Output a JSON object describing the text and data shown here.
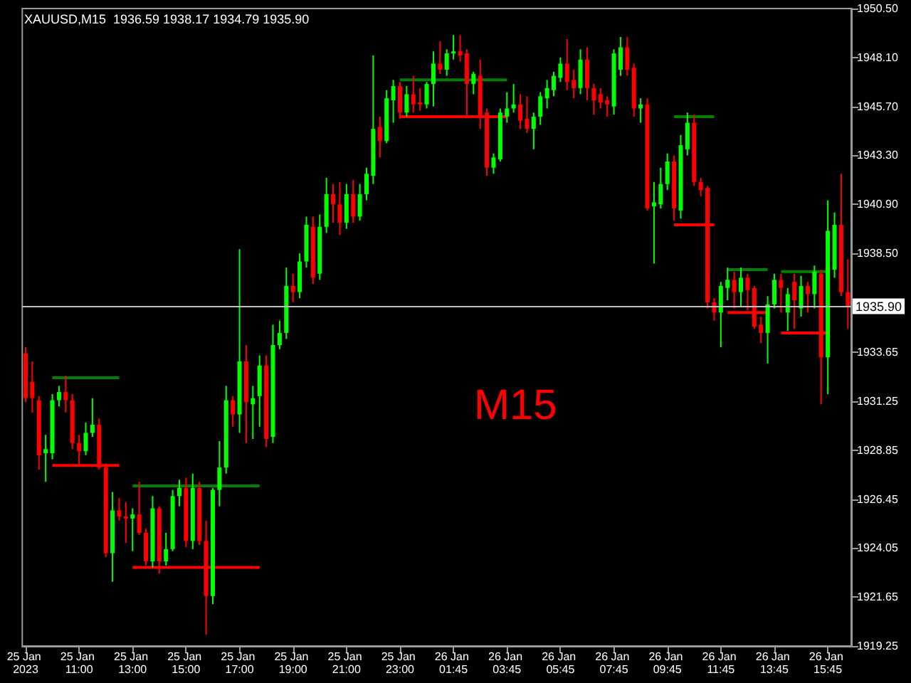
{
  "chart_data": {
    "type": "candlestick",
    "title": "XAUUSD,M15  1936.59 1938.17 1934.79 1935.90",
    "categories": [
      "25 Jan 2023",
      null,
      null,
      null,
      null,
      null,
      null,
      null,
      "25 Jan 11:00",
      null,
      null,
      null,
      null,
      null,
      null,
      null,
      "25 Jan 13:00",
      null,
      null,
      null,
      null,
      null,
      null,
      null,
      "25 Jan 15:00",
      null,
      null,
      null,
      null,
      null,
      null,
      null,
      "25 Jan 17:00",
      null,
      null,
      null,
      null,
      null,
      null,
      null,
      "25 Jan 19:00",
      null,
      null,
      null,
      null,
      null,
      null,
      null,
      "25 Jan 21:00",
      null,
      null,
      null,
      null,
      null,
      null,
      null,
      "25 Jan 23:00",
      null,
      null,
      null,
      null,
      null,
      null,
      null,
      "26 Jan 01:45",
      null,
      null,
      null,
      null,
      null,
      null,
      null,
      "26 Jan 03:45",
      null,
      null,
      null,
      null,
      null,
      null,
      null,
      "26 Jan 05:45",
      null,
      null,
      null,
      null,
      null,
      null,
      null,
      "26 Jan 07:45",
      null,
      null,
      null,
      null,
      null,
      null,
      null,
      "26 Jan 09:45",
      null,
      null,
      null,
      null,
      null,
      null,
      null,
      "26 Jan 11:45",
      null,
      null,
      null,
      null,
      null,
      null,
      null,
      "26 Jan 13:45",
      null,
      null,
      null,
      null,
      null,
      null,
      null,
      "26 Jan 15:45",
      null,
      null,
      null
    ],
    "ohlc": [
      [
        1933.6,
        1933.9,
        1931.2,
        1931.4
      ],
      [
        1932.2,
        1933.2,
        1930.7,
        1931.4
      ],
      [
        1931.3,
        1931.5,
        1927.9,
        1928.6
      ],
      [
        1928.7,
        1929.6,
        1927.3,
        1928.9
      ],
      [
        1928.7,
        1931.6,
        1928.4,
        1931.3
      ],
      [
        1931.3,
        1932.0,
        1931.0,
        1931.7
      ],
      [
        1931.7,
        1932.5,
        1930.7,
        1931.3
      ],
      [
        1931.3,
        1931.6,
        1928.9,
        1929.2
      ],
      [
        1929.2,
        1929.6,
        1928.1,
        1928.8
      ],
      [
        1928.8,
        1930.2,
        1928.6,
        1929.7
      ],
      [
        1929.7,
        1931.4,
        1929.5,
        1930.1
      ],
      [
        1930.1,
        1930.4,
        1927.9,
        1928.0
      ],
      [
        1928.0,
        1928.2,
        1923.6,
        1923.8
      ],
      [
        1923.8,
        1926.8,
        1922.4,
        1925.9
      ],
      [
        1925.9,
        1926.5,
        1925.4,
        1925.6
      ],
      [
        1925.6,
        1926.3,
        1924.3,
        1925.5
      ],
      [
        1925.5,
        1926.0,
        1923.9,
        1925.7
      ],
      [
        1925.7,
        1927.3,
        1924.7,
        1924.8
      ],
      [
        1924.8,
        1925.0,
        1923.2,
        1923.4
      ],
      [
        1923.4,
        1926.6,
        1923.1,
        1926.0
      ],
      [
        1926.0,
        1926.1,
        1922.8,
        1923.4
      ],
      [
        1923.4,
        1924.8,
        1923.2,
        1924.0
      ],
      [
        1924.0,
        1926.9,
        1923.9,
        1926.6
      ],
      [
        1926.6,
        1927.4,
        1926.1,
        1927.0
      ],
      [
        1927.0,
        1927.5,
        1924.1,
        1924.4
      ],
      [
        1924.4,
        1927.7,
        1924.0,
        1927.0
      ],
      [
        1927.0,
        1927.3,
        1924.2,
        1924.4
      ],
      [
        1924.4,
        1925.4,
        1919.8,
        1921.7
      ],
      [
        1921.7,
        1927.0,
        1921.3,
        1926.9
      ],
      [
        1926.9,
        1929.3,
        1926.1,
        1928.0
      ],
      [
        1928.0,
        1932.0,
        1927.7,
        1931.3
      ],
      [
        1931.3,
        1931.5,
        1930.0,
        1930.6
      ],
      [
        1930.6,
        1938.7,
        1929.7,
        1933.2
      ],
      [
        1933.2,
        1934.0,
        1929.2,
        1931.2
      ],
      [
        1931.1,
        1932.0,
        1929.4,
        1931.4
      ],
      [
        1931.5,
        1933.5,
        1930.0,
        1933.0
      ],
      [
        1933.0,
        1933.5,
        1929.0,
        1929.4
      ],
      [
        1929.5,
        1935.0,
        1929.2,
        1934.0
      ],
      [
        1934.0,
        1935.2,
        1933.8,
        1934.6
      ],
      [
        1934.6,
        1937.8,
        1934.3,
        1936.9
      ],
      [
        1936.9,
        1937.5,
        1936.1,
        1936.6
      ],
      [
        1936.6,
        1938.5,
        1936.3,
        1938.1
      ],
      [
        1938.1,
        1940.3,
        1937.8,
        1939.9
      ],
      [
        1939.8,
        1940.3,
        1937.0,
        1937.3
      ],
      [
        1937.5,
        1940.4,
        1937.2,
        1939.8
      ],
      [
        1939.8,
        1942.2,
        1939.5,
        1941.4
      ],
      [
        1941.4,
        1941.9,
        1940.0,
        1940.9
      ],
      [
        1940.9,
        1942.0,
        1939.4,
        1940.0
      ],
      [
        1940.0,
        1941.9,
        1939.7,
        1941.4
      ],
      [
        1941.4,
        1942.1,
        1940.0,
        1940.3
      ],
      [
        1940.3,
        1941.9,
        1940.1,
        1941.4
      ],
      [
        1941.4,
        1942.7,
        1941.1,
        1942.4
      ],
      [
        1942.3,
        1948.2,
        1941.9,
        1944.6
      ],
      [
        1944.7,
        1945.2,
        1943.2,
        1944.0
      ],
      [
        1944.0,
        1946.5,
        1943.9,
        1946.1
      ],
      [
        1946.0,
        1947.0,
        1944.9,
        1946.7
      ],
      [
        1946.7,
        1946.9,
        1945.1,
        1945.4
      ],
      [
        1945.4,
        1946.7,
        1945.2,
        1946.3
      ],
      [
        1946.3,
        1947.2,
        1945.4,
        1945.8
      ],
      [
        1945.9,
        1946.6,
        1945.5,
        1945.8
      ],
      [
        1945.8,
        1946.9,
        1945.6,
        1946.8
      ],
      [
        1946.8,
        1948.4,
        1945.7,
        1947.8
      ],
      [
        1947.8,
        1948.9,
        1947.3,
        1947.5
      ],
      [
        1947.5,
        1948.5,
        1947.2,
        1948.3
      ],
      [
        1948.3,
        1949.2,
        1948.0,
        1948.4
      ],
      [
        1948.4,
        1949.2,
        1947.9,
        1948.2
      ],
      [
        1948.3,
        1948.5,
        1945.2,
        1946.8
      ],
      [
        1946.8,
        1947.4,
        1946.3,
        1947.3
      ],
      [
        1947.2,
        1948.0,
        1944.6,
        1945.2
      ],
      [
        1945.4,
        1945.6,
        1942.3,
        1942.7
      ],
      [
        1942.7,
        1943.4,
        1942.4,
        1943.2
      ],
      [
        1943.1,
        1945.6,
        1943.0,
        1945.4
      ],
      [
        1945.2,
        1946.4,
        1944.9,
        1945.6
      ],
      [
        1945.6,
        1946.8,
        1945.4,
        1945.8
      ],
      [
        1945.8,
        1946.3,
        1944.6,
        1945.0
      ],
      [
        1945.1,
        1946.2,
        1944.4,
        1944.6
      ],
      [
        1944.6,
        1945.4,
        1943.6,
        1945.2
      ],
      [
        1945.2,
        1946.4,
        1944.8,
        1946.2
      ],
      [
        1946.1,
        1947.0,
        1945.6,
        1946.6
      ],
      [
        1946.5,
        1947.4,
        1946.2,
        1947.2
      ],
      [
        1947.1,
        1948.1,
        1946.9,
        1947.8
      ],
      [
        1947.8,
        1949.0,
        1946.5,
        1946.9
      ],
      [
        1947.0,
        1947.5,
        1946.1,
        1946.6
      ],
      [
        1946.6,
        1948.5,
        1946.3,
        1948.0
      ],
      [
        1948.0,
        1948.6,
        1946.0,
        1946.6
      ],
      [
        1946.6,
        1946.8,
        1945.3,
        1946.0
      ],
      [
        1946.3,
        1946.6,
        1945.6,
        1945.9
      ],
      [
        1946.0,
        1946.2,
        1945.2,
        1945.8
      ],
      [
        1945.7,
        1948.5,
        1945.3,
        1948.3
      ],
      [
        1947.5,
        1949.1,
        1947.2,
        1948.6
      ],
      [
        1948.6,
        1949.1,
        1947.2,
        1947.5
      ],
      [
        1947.6,
        1947.8,
        1945.2,
        1945.6
      ],
      [
        1945.6,
        1946.1,
        1944.9,
        1945.8
      ],
      [
        1945.8,
        1946.1,
        1940.6,
        1940.7
      ],
      [
        1940.8,
        1942.0,
        1938.0,
        1941.0
      ],
      [
        1940.9,
        1942.7,
        1940.7,
        1941.9
      ],
      [
        1941.9,
        1943.4,
        1941.6,
        1943.0
      ],
      [
        1943.0,
        1943.3,
        1940.1,
        1940.7
      ],
      [
        1940.6,
        1944.3,
        1940.2,
        1943.8
      ],
      [
        1943.6,
        1945.4,
        1943.3,
        1944.9
      ],
      [
        1944.9,
        1945.3,
        1941.8,
        1942.0
      ],
      [
        1942.0,
        1942.2,
        1941.3,
        1941.6
      ],
      [
        1941.7,
        1941.8,
        1935.8,
        1936.1
      ],
      [
        1936.1,
        1936.3,
        1935.2,
        1935.6
      ],
      [
        1935.6,
        1937.1,
        1933.9,
        1936.9
      ],
      [
        1936.8,
        1937.8,
        1936.2,
        1937.2
      ],
      [
        1937.2,
        1937.6,
        1935.8,
        1936.6
      ],
      [
        1936.6,
        1937.8,
        1935.9,
        1937.3
      ],
      [
        1937.3,
        1937.5,
        1935.7,
        1936.7
      ],
      [
        1936.8,
        1936.9,
        1934.8,
        1934.9
      ],
      [
        1935.0,
        1935.4,
        1934.1,
        1934.6
      ],
      [
        1934.6,
        1936.4,
        1933.1,
        1936.0
      ],
      [
        1936.0,
        1937.5,
        1935.8,
        1937.2
      ],
      [
        1937.2,
        1937.5,
        1935.6,
        1936.8
      ],
      [
        1935.6,
        1936.8,
        1934.7,
        1936.5
      ],
      [
        1937.1,
        1937.5,
        1934.8,
        1936.2
      ],
      [
        1935.8,
        1937.4,
        1935.4,
        1936.9
      ],
      [
        1936.9,
        1937.1,
        1935.6,
        1936.5
      ],
      [
        1936.5,
        1937.9,
        1935.8,
        1937.6
      ],
      [
        1937.5,
        1937.7,
        1931.1,
        1933.4
      ],
      [
        1933.4,
        1941.1,
        1931.6,
        1939.6
      ],
      [
        1937.7,
        1940.5,
        1937.3,
        1939.9
      ],
      [
        1939.9,
        1942.4,
        1936.4,
        1936.6
      ],
      [
        1936.6,
        1938.2,
        1934.8,
        1935.9
      ]
    ],
    "colors": [
      "#ff0000",
      "#ff0000",
      "#ff0000",
      "#00ff00",
      "#00ff00",
      "#00ff00",
      "#ff0000",
      "#ff0000",
      "#ff0000",
      "#00ff00",
      "#00ff00",
      "#ff0000",
      "#ff0000",
      "#00ff00",
      "#ff0000",
      "#ff0000",
      "#00ff00",
      "#ff0000",
      "#ff0000",
      "#00ff00",
      "#ff0000",
      "#00ff00",
      "#00ff00",
      "#00ff00",
      "#ff0000",
      "#00ff00",
      "#ff0000",
      "#ff0000",
      "#00ff00",
      "#00ff00",
      "#00ff00",
      "#ff0000",
      "#00ff00",
      "#ff0000",
      "#00ff00",
      "#00ff00",
      "#ff0000",
      "#00ff00",
      "#00ff00",
      "#00ff00",
      "#ff0000",
      "#00ff00",
      "#00ff00",
      "#ff0000",
      "#00ff00",
      "#00ff00",
      "#ff0000",
      "#ff0000",
      "#00ff00",
      "#ff0000",
      "#00ff00",
      "#00ff00",
      "#00ff00",
      "#ff0000",
      "#00ff00",
      "#00ff00",
      "#ff0000",
      "#00ff00",
      "#ff0000",
      "#ff0000",
      "#00ff00",
      "#00ff00",
      "#ff0000",
      "#00ff00",
      "#00ff00",
      "#ff0000",
      "#ff0000",
      "#00ff00",
      "#ff0000",
      "#ff0000",
      "#00ff00",
      "#00ff00",
      "#00ff00",
      "#00ff00",
      "#ff0000",
      "#ff0000",
      "#00ff00",
      "#00ff00",
      "#00ff00",
      "#00ff00",
      "#00ff00",
      "#ff0000",
      "#ff0000",
      "#00ff00",
      "#ff0000",
      "#ff0000",
      "#ff0000",
      "#ff0000",
      "#00ff00",
      "#00ff00",
      "#ff0000",
      "#ff0000",
      "#00ff00",
      "#ff0000",
      "#00ff00",
      "#00ff00",
      "#00ff00",
      "#ff0000",
      "#00ff00",
      "#00ff00",
      "#ff0000",
      "#ff0000",
      "#ff0000",
      "#ff0000",
      "#00ff00",
      "#00ff00",
      "#ff0000",
      "#00ff00",
      "#ff0000",
      "#ff0000",
      "#ff0000",
      "#00ff00",
      "#00ff00",
      "#ff0000",
      "#00ff00",
      "#ff0000",
      "#00ff00",
      "#ff0000",
      "#00ff00",
      "#ff0000",
      "#00ff00",
      "#00ff00",
      "#ff0000",
      "#ff0000"
    ],
    "series": [
      {
        "type": "line",
        "color": "#008000",
        "values": [
          null,
          null,
          null,
          null,
          1932.4,
          1932.4,
          1932.4,
          1932.4,
          1932.4,
          1932.4,
          1932.4,
          1932.4,
          1932.4,
          1932.4,
          1932.4,
          null,
          1927.1,
          1927.1,
          1927.1,
          1927.1,
          1927.1,
          1927.1,
          1927.1,
          1927.1,
          1927.1,
          1927.1,
          1927.1,
          1927.1,
          1927.1,
          1927.1,
          1927.1,
          1927.1,
          1927.1,
          1927.1,
          1927.1,
          1927.1,
          null,
          null,
          null,
          null,
          null,
          null,
          null,
          null,
          null,
          null,
          null,
          null,
          null,
          null,
          null,
          null,
          null,
          null,
          null,
          null,
          1947.0,
          1947.0,
          1947.0,
          1947.0,
          1947.0,
          1947.0,
          1947.0,
          1947.0,
          1947.0,
          1947.0,
          1947.0,
          1947.0,
          1947.0,
          1947.0,
          1947.0,
          1947.0,
          1947.0,
          null,
          null,
          null,
          null,
          null,
          null,
          null,
          null,
          null,
          null,
          null,
          null,
          null,
          null,
          null,
          null,
          null,
          null,
          null,
          null,
          null,
          null,
          null,
          null,
          1945.2,
          1945.2,
          1945.2,
          1945.2,
          1945.2,
          1945.2,
          1945.2,
          null,
          1937.7,
          1937.7,
          1937.7,
          1937.7,
          1937.7,
          1937.7,
          1937.7,
          null,
          1937.6,
          1937.6,
          1937.6,
          1937.6,
          1937.6,
          1937.6,
          1937.6,
          1937.6,
          null,
          null,
          null
        ]
      },
      {
        "type": "line",
        "color": "#ff0000",
        "values": [
          null,
          null,
          null,
          null,
          1928.1,
          1928.1,
          1928.1,
          1928.1,
          1928.1,
          1928.1,
          1928.1,
          1928.1,
          1928.1,
          1928.1,
          1928.1,
          null,
          1923.1,
          1923.1,
          1923.1,
          1923.1,
          1923.1,
          1923.1,
          1923.1,
          1923.1,
          1923.1,
          1923.1,
          1923.1,
          1923.1,
          1923.1,
          1923.1,
          1923.1,
          1923.1,
          1923.1,
          1923.1,
          1923.1,
          1923.1,
          null,
          null,
          null,
          null,
          null,
          null,
          null,
          null,
          null,
          null,
          null,
          null,
          null,
          null,
          null,
          null,
          null,
          null,
          null,
          null,
          1945.2,
          1945.2,
          1945.2,
          1945.2,
          1945.2,
          1945.2,
          1945.2,
          1945.2,
          1945.2,
          1945.2,
          1945.2,
          1945.2,
          1945.2,
          1945.2,
          1945.2,
          1945.2,
          1945.2,
          null,
          null,
          null,
          null,
          null,
          null,
          null,
          null,
          null,
          null,
          null,
          null,
          null,
          null,
          null,
          null,
          null,
          null,
          null,
          null,
          null,
          null,
          null,
          null,
          1939.9,
          1939.9,
          1939.9,
          1939.9,
          1939.9,
          1939.9,
          1939.9,
          null,
          1935.6,
          1935.6,
          1935.6,
          1935.6,
          1935.6,
          1935.6,
          1935.6,
          null,
          1934.6,
          1934.6,
          1934.6,
          1934.6,
          1934.6,
          1934.6,
          1934.6,
          1934.6,
          null,
          null,
          null
        ]
      }
    ],
    "ylim": [
      1919.25,
      1950.5
    ],
    "yticks": [
      {
        "value": 1919.25,
        "label": "1919.25"
      },
      {
        "value": 1921.65,
        "label": "1921.65"
      },
      {
        "value": 1924.05,
        "label": "1924.05"
      },
      {
        "value": 1926.45,
        "label": "1926.45"
      },
      {
        "value": 1928.85,
        "label": "1928.85"
      },
      {
        "value": 1931.25,
        "label": "1931.25"
      },
      {
        "value": 1933.65,
        "label": "1933.65"
      },
      {
        "value": 1938.5,
        "label": "1938.50"
      },
      {
        "value": 1940.9,
        "label": "1940.90"
      },
      {
        "value": 1943.3,
        "label": "1943.30"
      },
      {
        "value": 1945.7,
        "label": "1945.70"
      },
      {
        "value": 1948.1,
        "label": "1948.10"
      },
      {
        "value": 1950.5,
        "label": "1950.50"
      }
    ],
    "ref_lines": [
      {
        "axis": "y",
        "value": 1935.9,
        "label": "1935.90",
        "color": "#c0c0c0"
      }
    ],
    "annotations": [
      "M15"
    ]
  }
}
